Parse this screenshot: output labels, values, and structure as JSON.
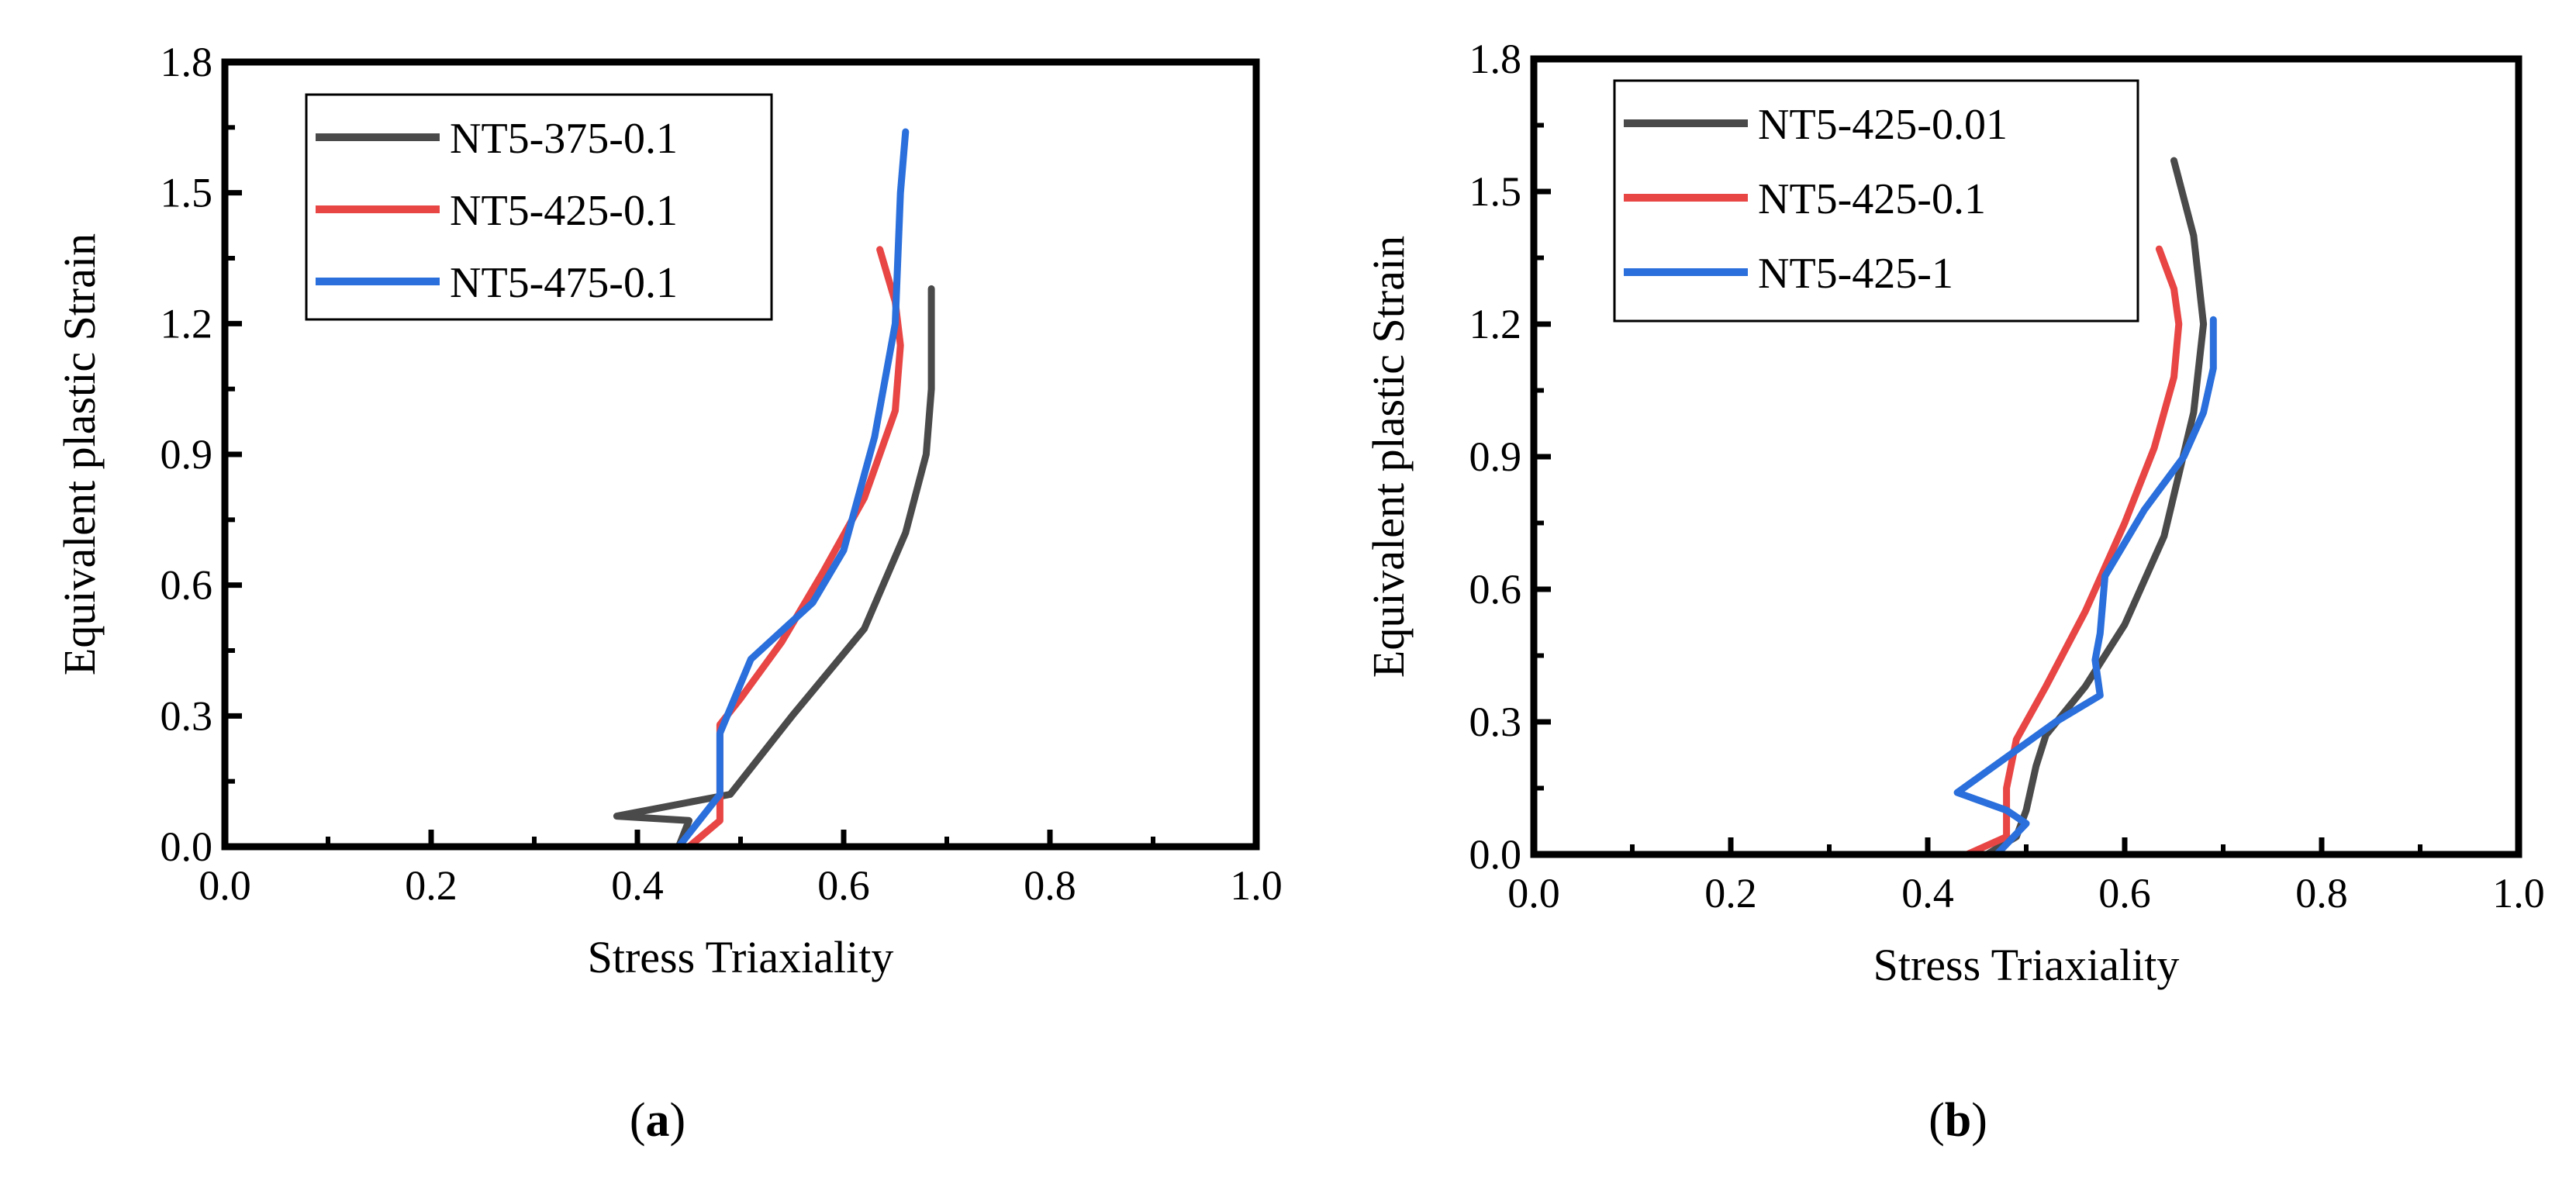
{
  "chart_data": [
    {
      "type": "line",
      "panel_label": "a",
      "xlabel": "Stress Triaxiality",
      "ylabel": "Equivalent plastic Strain",
      "xlim": [
        0,
        1.0
      ],
      "ylim": [
        0,
        1.8
      ],
      "xticks": [
        "0.0",
        "0.2",
        "0.4",
        "0.6",
        "0.8",
        "1.0"
      ],
      "yticks": [
        "0.0",
        "0.3",
        "0.6",
        "0.9",
        "1.2",
        "1.5",
        "1.8"
      ],
      "grid": false,
      "legend": "top-left",
      "series": [
        {
          "name": "NT5-375-0.1",
          "color": "#4a4a4a",
          "x": [
            0.0,
            0.44,
            0.45,
            0.38,
            0.49,
            0.55,
            0.62,
            0.66,
            0.68,
            0.685,
            0.685
          ],
          "y": [
            0.0,
            0.0,
            0.06,
            0.07,
            0.12,
            0.3,
            0.5,
            0.72,
            0.9,
            1.05,
            1.28
          ]
        },
        {
          "name": "NT5-425-0.1",
          "color": "#e84545",
          "x": [
            0.0,
            0.45,
            0.48,
            0.48,
            0.5,
            0.54,
            0.58,
            0.62,
            0.65,
            0.655,
            0.65,
            0.635
          ],
          "y": [
            0.0,
            0.0,
            0.06,
            0.28,
            0.34,
            0.47,
            0.63,
            0.8,
            1.0,
            1.15,
            1.25,
            1.37
          ]
        },
        {
          "name": "NT5-475-0.1",
          "color": "#2a6fdb",
          "x": [
            0.0,
            0.44,
            0.48,
            0.48,
            0.51,
            0.57,
            0.6,
            0.63,
            0.65,
            0.655,
            0.66
          ],
          "y": [
            0.0,
            0.0,
            0.12,
            0.26,
            0.43,
            0.56,
            0.68,
            0.94,
            1.2,
            1.5,
            1.64
          ]
        }
      ]
    },
    {
      "type": "line",
      "panel_label": "b",
      "xlabel": "Stress Triaxiality",
      "ylabel": "Equivalent plastic Strain",
      "xlim": [
        0,
        1.0
      ],
      "ylim": [
        0,
        1.8
      ],
      "xticks": [
        "0.0",
        "0.2",
        "0.4",
        "0.6",
        "0.8",
        "1.0"
      ],
      "yticks": [
        "0.0",
        "0.3",
        "0.6",
        "0.9",
        "1.2",
        "1.5",
        "1.8"
      ],
      "grid": false,
      "legend": "top-left",
      "series": [
        {
          "name": "NT5-425-0.01",
          "color": "#4a4a4a",
          "x": [
            0.0,
            0.46,
            0.49,
            0.5,
            0.51,
            0.52,
            0.56,
            0.6,
            0.64,
            0.67,
            0.68,
            0.67,
            0.65
          ],
          "y": [
            0.0,
            0.0,
            0.04,
            0.1,
            0.2,
            0.27,
            0.38,
            0.52,
            0.72,
            1.0,
            1.2,
            1.4,
            1.57
          ]
        },
        {
          "name": "NT5-425-0.1",
          "color": "#e84545",
          "x": [
            0.0,
            0.44,
            0.48,
            0.48,
            0.49,
            0.52,
            0.56,
            0.6,
            0.63,
            0.65,
            0.655,
            0.65,
            0.635
          ],
          "y": [
            0.0,
            0.0,
            0.04,
            0.15,
            0.26,
            0.38,
            0.55,
            0.75,
            0.92,
            1.08,
            1.2,
            1.28,
            1.37
          ]
        },
        {
          "name": "NT5-425-1",
          "color": "#2a6fdb",
          "x": [
            0.0,
            0.47,
            0.5,
            0.48,
            0.43,
            0.48,
            0.53,
            0.575,
            0.57,
            0.575,
            0.58,
            0.62,
            0.66,
            0.68,
            0.69,
            0.69
          ],
          "y": [
            0.0,
            0.0,
            0.07,
            0.1,
            0.14,
            0.22,
            0.3,
            0.36,
            0.44,
            0.5,
            0.63,
            0.78,
            0.9,
            1.0,
            1.1,
            1.21
          ]
        }
      ]
    }
  ]
}
